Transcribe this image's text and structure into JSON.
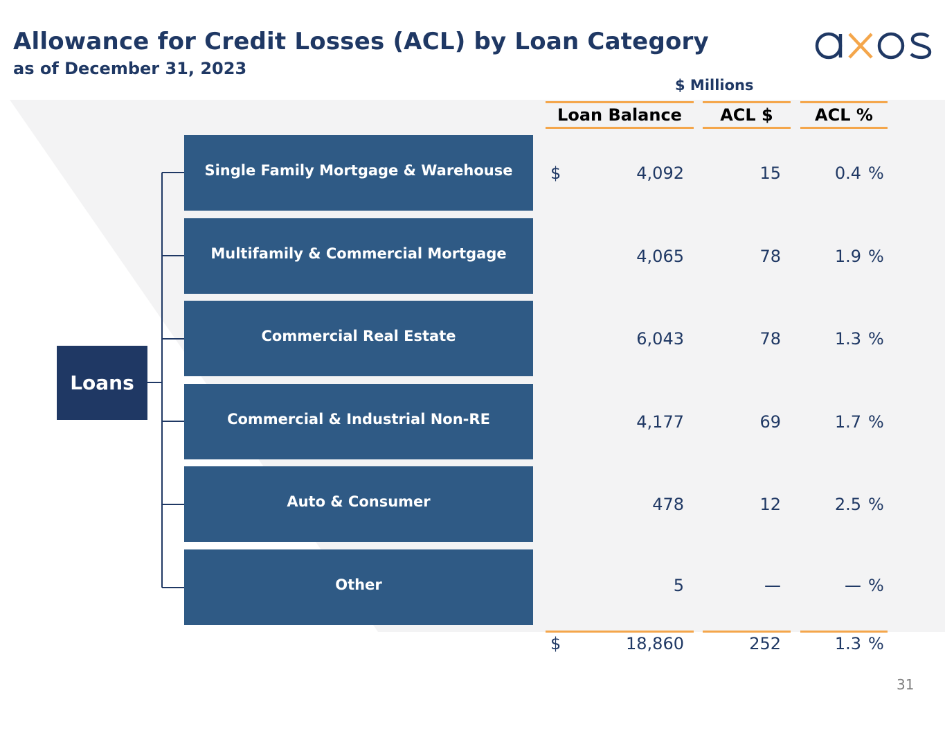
{
  "title": "Allowance for Credit Losses (ACL) by Loan Category",
  "subtitle": "as of December 31, 2023",
  "logo_text": "axos",
  "units": "$ Millions",
  "columns": [
    "Loan Balance",
    "ACL $",
    "ACL %"
  ],
  "root_label": "Loans",
  "rows": [
    {
      "label": "Single Family Mortgage & Warehouse",
      "currency": "$",
      "balance": "4,092",
      "acl": "15",
      "pct": "0.4",
      "pct_sym": "%"
    },
    {
      "label": "Multifamily & Commercial Mortgage",
      "currency": "",
      "balance": "4,065",
      "acl": "78",
      "pct": "1.9",
      "pct_sym": "%"
    },
    {
      "label": "Commercial Real Estate",
      "currency": "",
      "balance": "6,043",
      "acl": "78",
      "pct": "1.3",
      "pct_sym": "%"
    },
    {
      "label": "Commercial & Industrial Non-RE",
      "currency": "",
      "balance": "4,177",
      "acl": "69",
      "pct": "1.7",
      "pct_sym": "%"
    },
    {
      "label": "Auto & Consumer",
      "currency": "",
      "balance": "478",
      "acl": "12",
      "pct": "2.5",
      "pct_sym": "%"
    },
    {
      "label": "Other",
      "currency": "",
      "balance": "5",
      "acl": "—",
      "pct": "—",
      "pct_sym": "%"
    }
  ],
  "total": {
    "currency": "$",
    "balance": "18,860",
    "acl": "252",
    "pct": "1.3",
    "pct_sym": "%"
  },
  "page_number": "31",
  "colors": {
    "navy": "#1f3864",
    "category_blue": "#2f5a85",
    "accent_orange": "#f4a64b",
    "panel_gray": "#f3f3f4"
  }
}
